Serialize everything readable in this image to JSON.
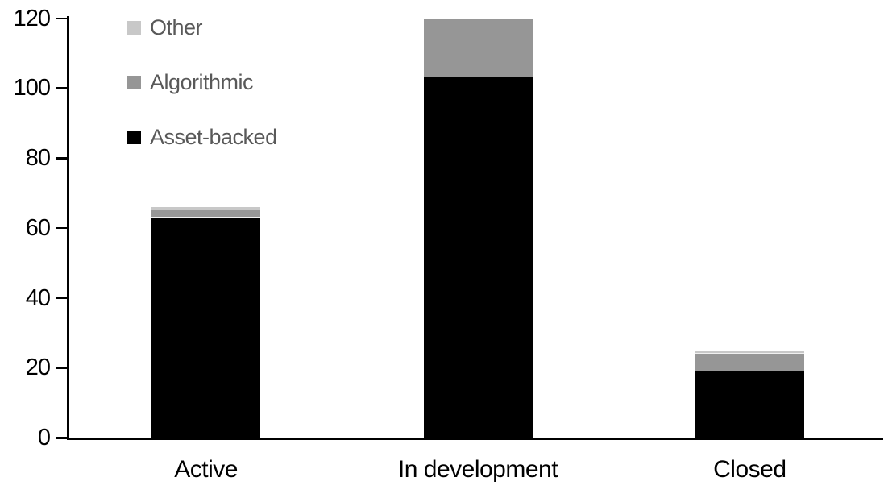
{
  "chart_data": {
    "type": "bar",
    "stacked": true,
    "title": "",
    "xlabel": "",
    "ylabel": "",
    "categories": [
      "Active",
      "In development",
      "Closed"
    ],
    "series": [
      {
        "name": "Other",
        "color": "#c8c8c8",
        "values": [
          1,
          0,
          1
        ]
      },
      {
        "name": "Algorithmic",
        "color": "#969696",
        "values": [
          2,
          17,
          5
        ]
      },
      {
        "name": "Asset-backed",
        "color": "#000000",
        "values": [
          63,
          103,
          19
        ]
      }
    ],
    "stack_order_bottom_to_top": [
      "Asset-backed",
      "Algorithmic",
      "Other"
    ],
    "totals": [
      66,
      120,
      25
    ],
    "y_ticks": [
      0,
      20,
      40,
      60,
      80,
      100,
      120
    ],
    "ylim": [
      0,
      120
    ],
    "grid": false,
    "legend_position": "top-left",
    "colors": {
      "legend_text": "#595959",
      "axis": "#000000",
      "background": "#ffffff"
    }
  }
}
